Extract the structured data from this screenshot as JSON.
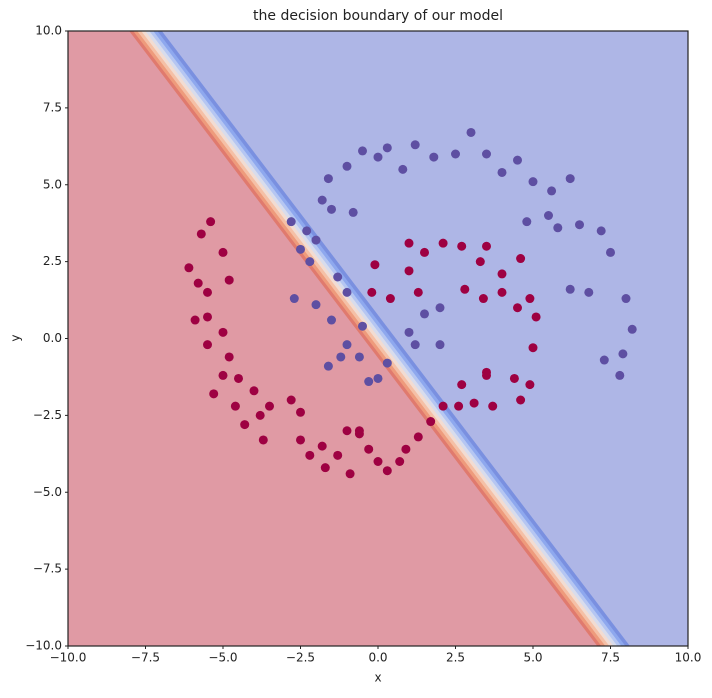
{
  "chart_data": {
    "type": "scatter",
    "title": "the decision boundary of our model",
    "x_label": "x",
    "y_label": "y",
    "xlim": [
      -10,
      10
    ],
    "ylim": [
      -10,
      10
    ],
    "xticks": [
      {
        "value": -10,
        "label": "−10.0"
      },
      {
        "value": -7.5,
        "label": "−7.5"
      },
      {
        "value": -5,
        "label": "−5.0"
      },
      {
        "value": -2.5,
        "label": "−2.5"
      },
      {
        "value": 0,
        "label": "0.0"
      },
      {
        "value": 2.5,
        "label": "2.5"
      },
      {
        "value": 5,
        "label": "5.0"
      },
      {
        "value": 7.5,
        "label": "7.5"
      },
      {
        "value": 10,
        "label": "10.0"
      }
    ],
    "yticks": [
      {
        "value": -10,
        "label": "−10.0"
      },
      {
        "value": -7.5,
        "label": "−7.5"
      },
      {
        "value": -5,
        "label": "−5.0"
      },
      {
        "value": -2.5,
        "label": "−2.5"
      },
      {
        "value": 0,
        "label": "0.0"
      },
      {
        "value": 2.5,
        "label": "2.5"
      },
      {
        "value": 5,
        "label": "5.0"
      },
      {
        "value": 7.5,
        "label": "7.5"
      },
      {
        "value": 10,
        "label": "10.0"
      }
    ],
    "boundary": {
      "x": [
        -7.5,
        7.6
      ],
      "y": [
        10,
        -10
      ],
      "colors": [
        "#e09aa4",
        "#aeb6e6"
      ]
    },
    "series": [
      {
        "color": "#5e4fa2",
        "x": [
          -2.8,
          -2.5,
          -2.2,
          -2.3,
          -1.8,
          -1.6,
          -1,
          -0.5,
          0,
          0.3,
          0.8,
          1.2,
          1.8,
          2.5,
          3,
          3.5,
          4,
          4.5,
          5,
          5.6,
          6.2,
          6.5,
          7.2,
          7.5,
          8,
          8.2,
          7.9,
          7.8,
          7.3,
          6.8,
          6.2,
          5.8,
          5.5,
          4.8,
          -2.7,
          -2,
          -1.5,
          -1,
          -0.6,
          -1.2,
          -0.5,
          -1.6,
          0,
          1,
          1.5,
          2,
          1.2,
          -0.3,
          -1,
          -1.3,
          -2,
          0.3,
          2,
          -0.8,
          -1.5
        ],
        "y": [
          3.8,
          2.9,
          2.5,
          3.5,
          4.5,
          5.2,
          5.6,
          6.1,
          5.9,
          6.2,
          5.5,
          6.3,
          5.9,
          6.0,
          6.7,
          6.0,
          5.4,
          5.8,
          5.1,
          4.8,
          5.2,
          3.7,
          3.5,
          2.8,
          1.3,
          0.3,
          -0.5,
          -1.2,
          -0.7,
          1.5,
          1.6,
          3.6,
          4.0,
          3.8,
          1.3,
          1.1,
          0.6,
          -0.2,
          -0.6,
          -0.6,
          0.4,
          -0.9,
          -1.3,
          0.2,
          0.8,
          1.0,
          -0.2,
          -1.4,
          1.5,
          2.0,
          3.2,
          -0.8,
          -0.2,
          4.1,
          4.2
        ]
      },
      {
        "color": "#9e0142",
        "x": [
          -6.1,
          -5.8,
          -5.5,
          -4.8,
          -5.7,
          -5.4,
          -5,
          -5.9,
          -5.5,
          -5,
          -5.5,
          -4.8,
          -5,
          -4.5,
          -5.3,
          -4.6,
          -4,
          -3.8,
          -4.3,
          -3.7,
          -3.5,
          -2.8,
          -2.5,
          -2.5,
          -2.2,
          -1.8,
          -1.7,
          -1.3,
          -1,
          -0.6,
          -0.3,
          0,
          0.3,
          0.7,
          0.9,
          1.3,
          1.7,
          2.1,
          2.6,
          2.7,
          3.1,
          3.5,
          3.7,
          4.4,
          4.6,
          4.9,
          5,
          5.1,
          4.9,
          4.6,
          4,
          3.5,
          3.3,
          2.7,
          2.1,
          1.5,
          1,
          1,
          1.3,
          0.4,
          2.8,
          3.4,
          4,
          4.5,
          3.5,
          -0.2,
          -0.1,
          -0.6,
          -0.9
        ],
        "y": [
          2.3,
          1.8,
          1.5,
          1.9,
          3.4,
          3.8,
          2.8,
          0.6,
          0.7,
          0.2,
          -0.2,
          -0.6,
          -1.2,
          -1.3,
          -1.8,
          -2.2,
          -1.7,
          -2.5,
          -2.8,
          -3.3,
          -2.2,
          -2.0,
          -2.4,
          -3.3,
          -3.8,
          -3.5,
          -4.2,
          -3.8,
          -3.0,
          -3.0,
          -3.6,
          -4.0,
          -4.3,
          -4.0,
          -3.6,
          -3.2,
          -2.7,
          -2.2,
          -2.2,
          -1.5,
          -2.1,
          -1.2,
          -2.2,
          -1.3,
          -2.0,
          -1.5,
          -0.3,
          0.7,
          1.3,
          2.6,
          2.1,
          3.0,
          2.5,
          3.0,
          3.1,
          2.8,
          3.1,
          2.2,
          1.5,
          1.3,
          1.6,
          1.3,
          1.5,
          1.0,
          -1.1,
          1.5,
          2.4,
          -3.1,
          -4.4
        ]
      }
    ]
  }
}
